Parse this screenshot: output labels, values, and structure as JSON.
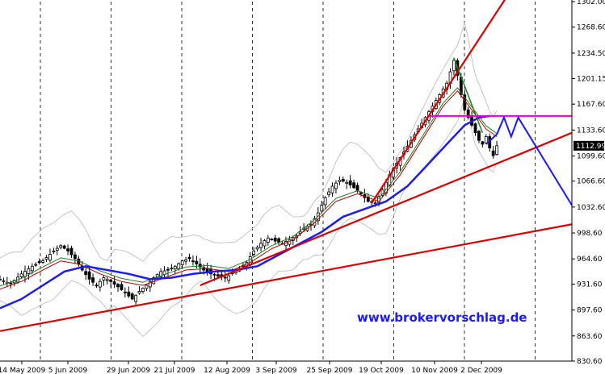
{
  "watermark": "www.brokervorschlag.de",
  "chart_data": {
    "type": "candlestick",
    "title": "",
    "xlabel": "",
    "ylabel": "",
    "ylim": [
      830.6,
      1302.0
    ],
    "y_ticks": [
      1302.0,
      1268.6,
      1234.5,
      1201.15,
      1167.6,
      1133.6,
      1099.6,
      1066.6,
      1032.6,
      998.6,
      964.6,
      931.6,
      897.6,
      863.6,
      830.6
    ],
    "y_tick_labels": [
      "1302.00",
      "1268.60",
      "1234.50",
      "1201.15",
      "1167.60",
      "1133.60",
      "1099.60",
      "1066.60",
      "1032.60",
      "998.60",
      "964.60",
      "931.60",
      "897.60",
      "863.60",
      "830.60"
    ],
    "x_tick_labels": [
      "14 May 2009",
      "5 Jun 2009",
      "29 Jun 2009",
      "21 Jul 2009",
      "12 Aug 2009",
      "3 Sep 2009",
      "25 Sep 2009",
      "19 Oct 2009",
      "10 Nov 2009",
      "2 Dec 2009"
    ],
    "current_price_label": "1112.99",
    "current_price": 1112.99,
    "grid": "vertical dashed",
    "price_path": [
      [
        0,
        938
      ],
      [
        3,
        932
      ],
      [
        6,
        945
      ],
      [
        9,
        955
      ],
      [
        12,
        962
      ],
      [
        15,
        975
      ],
      [
        17,
        982
      ],
      [
        19,
        975
      ],
      [
        21,
        965
      ],
      [
        23,
        950
      ],
      [
        25,
        938
      ],
      [
        27,
        930
      ],
      [
        29,
        940
      ],
      [
        31,
        935
      ],
      [
        33,
        928
      ],
      [
        35,
        920
      ],
      [
        37,
        912
      ],
      [
        39,
        922
      ],
      [
        41,
        930
      ],
      [
        43,
        940
      ],
      [
        45,
        948
      ],
      [
        47,
        950
      ],
      [
        49,
        955
      ],
      [
        51,
        962
      ],
      [
        53,
        965
      ],
      [
        55,
        958
      ],
      [
        57,
        950
      ],
      [
        59,
        945
      ],
      [
        61,
        942
      ],
      [
        63,
        940
      ],
      [
        65,
        945
      ],
      [
        67,
        952
      ],
      [
        69,
        960
      ],
      [
        71,
        975
      ],
      [
        73,
        985
      ],
      [
        75,
        992
      ],
      [
        77,
        988
      ],
      [
        79,
        985
      ],
      [
        81,
        990
      ],
      [
        83,
        995
      ],
      [
        85,
        1005
      ],
      [
        87,
        1010
      ],
      [
        89,
        1025
      ],
      [
        91,
        1045
      ],
      [
        93,
        1060
      ],
      [
        95,
        1068
      ],
      [
        97,
        1065
      ],
      [
        99,
        1058
      ],
      [
        101,
        1050
      ],
      [
        103,
        1040
      ],
      [
        105,
        1038
      ],
      [
        107,
        1055
      ],
      [
        109,
        1075
      ],
      [
        111,
        1090
      ],
      [
        113,
        1105
      ],
      [
        115,
        1120
      ],
      [
        117,
        1135
      ],
      [
        119,
        1150
      ],
      [
        121,
        1165
      ],
      [
        123,
        1180
      ],
      [
        125,
        1195
      ],
      [
        126,
        1210
      ],
      [
        127,
        1225
      ],
      [
        128,
        1205
      ],
      [
        129,
        1180
      ],
      [
        130,
        1160
      ],
      [
        131,
        1150
      ],
      [
        132,
        1140
      ],
      [
        133,
        1130
      ],
      [
        134,
        1120
      ],
      [
        135,
        1115
      ],
      [
        136,
        1125
      ],
      [
        137,
        1110
      ],
      [
        138,
        1100
      ],
      [
        139,
        1112.99
      ]
    ],
    "sma_fast": [
      [
        0,
        925
      ],
      [
        6,
        935
      ],
      [
        12,
        950
      ],
      [
        17,
        962
      ],
      [
        22,
        958
      ],
      [
        28,
        945
      ],
      [
        34,
        935
      ],
      [
        40,
        930
      ],
      [
        46,
        940
      ],
      [
        52,
        950
      ],
      [
        58,
        952
      ],
      [
        64,
        948
      ],
      [
        70,
        960
      ],
      [
        76,
        978
      ],
      [
        82,
        990
      ],
      [
        88,
        1012
      ],
      [
        94,
        1040
      ],
      [
        100,
        1050
      ],
      [
        106,
        1040
      ],
      [
        112,
        1075
      ],
      [
        118,
        1120
      ],
      [
        124,
        1165
      ],
      [
        128,
        1185
      ],
      [
        132,
        1160
      ],
      [
        136,
        1135
      ],
      [
        139,
        1125
      ]
    ],
    "sma_slow": [
      [
        0,
        900
      ],
      [
        6,
        912
      ],
      [
        12,
        930
      ],
      [
        18,
        948
      ],
      [
        24,
        955
      ],
      [
        30,
        950
      ],
      [
        36,
        945
      ],
      [
        42,
        938
      ],
      [
        48,
        940
      ],
      [
        54,
        945
      ],
      [
        60,
        948
      ],
      [
        66,
        950
      ],
      [
        72,
        955
      ],
      [
        78,
        970
      ],
      [
        84,
        985
      ],
      [
        90,
        1000
      ],
      [
        96,
        1020
      ],
      [
        102,
        1030
      ],
      [
        108,
        1040
      ],
      [
        114,
        1060
      ],
      [
        120,
        1090
      ],
      [
        126,
        1120
      ],
      [
        130,
        1140
      ],
      [
        134,
        1150
      ],
      [
        137,
        1152
      ]
    ],
    "annotations": {
      "trendlines_red": [
        {
          "from": [
            0,
            870
          ],
          "to": [
            160,
            1010
          ]
        },
        {
          "from": [
            56,
            930
          ],
          "to": [
            160,
            1130
          ]
        },
        {
          "from": [
            104,
            1038
          ],
          "to": [
            142,
            1310
          ]
        }
      ],
      "trendline_green": {
        "from": [
          127,
          1228
        ],
        "to": [
          135,
          1130
        ]
      },
      "resistance_magenta": {
        "from": [
          120,
          1152
        ],
        "to": [
          160,
          1152
        ]
      },
      "forecast_blue": [
        [
          136,
          1115
        ],
        [
          139,
          1128
        ],
        [
          141,
          1150
        ],
        [
          143,
          1125
        ],
        [
          145,
          1150
        ],
        [
          160,
          1035
        ]
      ]
    }
  }
}
